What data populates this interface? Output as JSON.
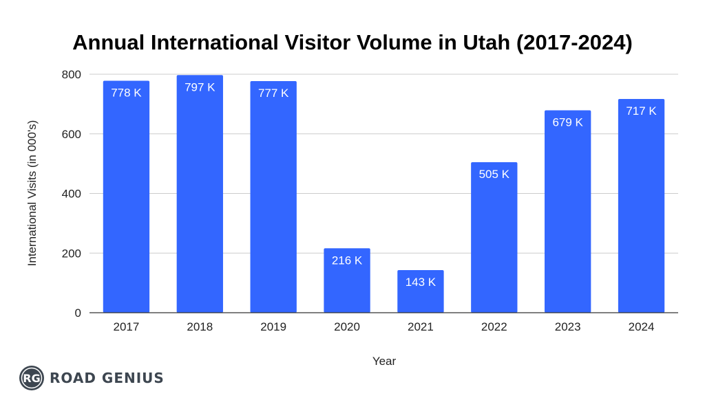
{
  "chart_data": {
    "type": "bar",
    "title": "Annual International Visitor Volume in Utah (2017-2024)",
    "xlabel": "Year",
    "ylabel": "International  Visits (in 000's)",
    "categories": [
      "2017",
      "2018",
      "2019",
      "2020",
      "2021",
      "2022",
      "2023",
      "2024"
    ],
    "values": [
      778,
      797,
      777,
      216,
      143,
      505,
      679,
      717
    ],
    "data_labels": [
      "778 K",
      "797 K",
      "777 K",
      "216 K",
      "143 K",
      "505 K",
      "679 K",
      "717 K"
    ],
    "ylim": [
      0,
      800
    ],
    "yticks": [
      0,
      200,
      400,
      600,
      800
    ],
    "grid": true,
    "bar_color": "#3366ff"
  },
  "branding": {
    "monogram": "RG",
    "name": "ROAD GENIUS",
    "logo_color": "#3d4650"
  }
}
